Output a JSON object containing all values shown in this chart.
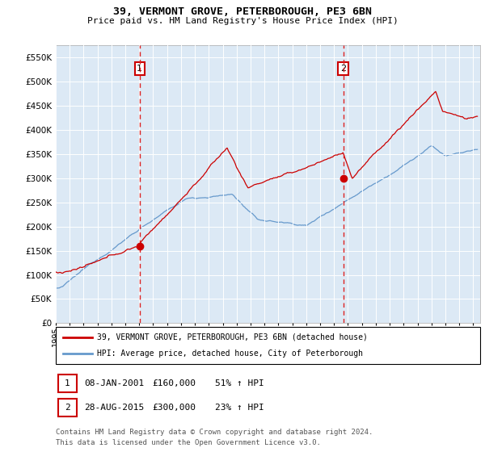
{
  "title": "39, VERMONT GROVE, PETERBOROUGH, PE3 6BN",
  "subtitle": "Price paid vs. HM Land Registry's House Price Index (HPI)",
  "legend_line1": "39, VERMONT GROVE, PETERBOROUGH, PE3 6BN (detached house)",
  "legend_line2": "HPI: Average price, detached house, City of Peterborough",
  "annotation1_date": "08-JAN-2001",
  "annotation1_price": "£160,000",
  "annotation1_hpi": "51% ↑ HPI",
  "annotation2_date": "28-AUG-2015",
  "annotation2_price": "£300,000",
  "annotation2_hpi": "23% ↑ HPI",
  "footer1": "Contains HM Land Registry data © Crown copyright and database right 2024.",
  "footer2": "This data is licensed under the Open Government Licence v3.0.",
  "sale1_date_num": 2001.03,
  "sale1_price": 160000,
  "sale2_date_num": 2015.66,
  "sale2_price": 300000,
  "xmin": 1995.0,
  "xmax": 2025.5,
  "ymin": 0,
  "ymax": 575000,
  "yticks": [
    0,
    50000,
    100000,
    150000,
    200000,
    250000,
    300000,
    350000,
    400000,
    450000,
    500000,
    550000
  ],
  "background_color": "#dce9f5",
  "red_line_color": "#cc0000",
  "blue_line_color": "#6699cc",
  "dashed_line_color": "#dd2222",
  "marker_color": "#cc0000",
  "grid_color": "#ffffff",
  "annotation_box_edge": "#cc0000"
}
